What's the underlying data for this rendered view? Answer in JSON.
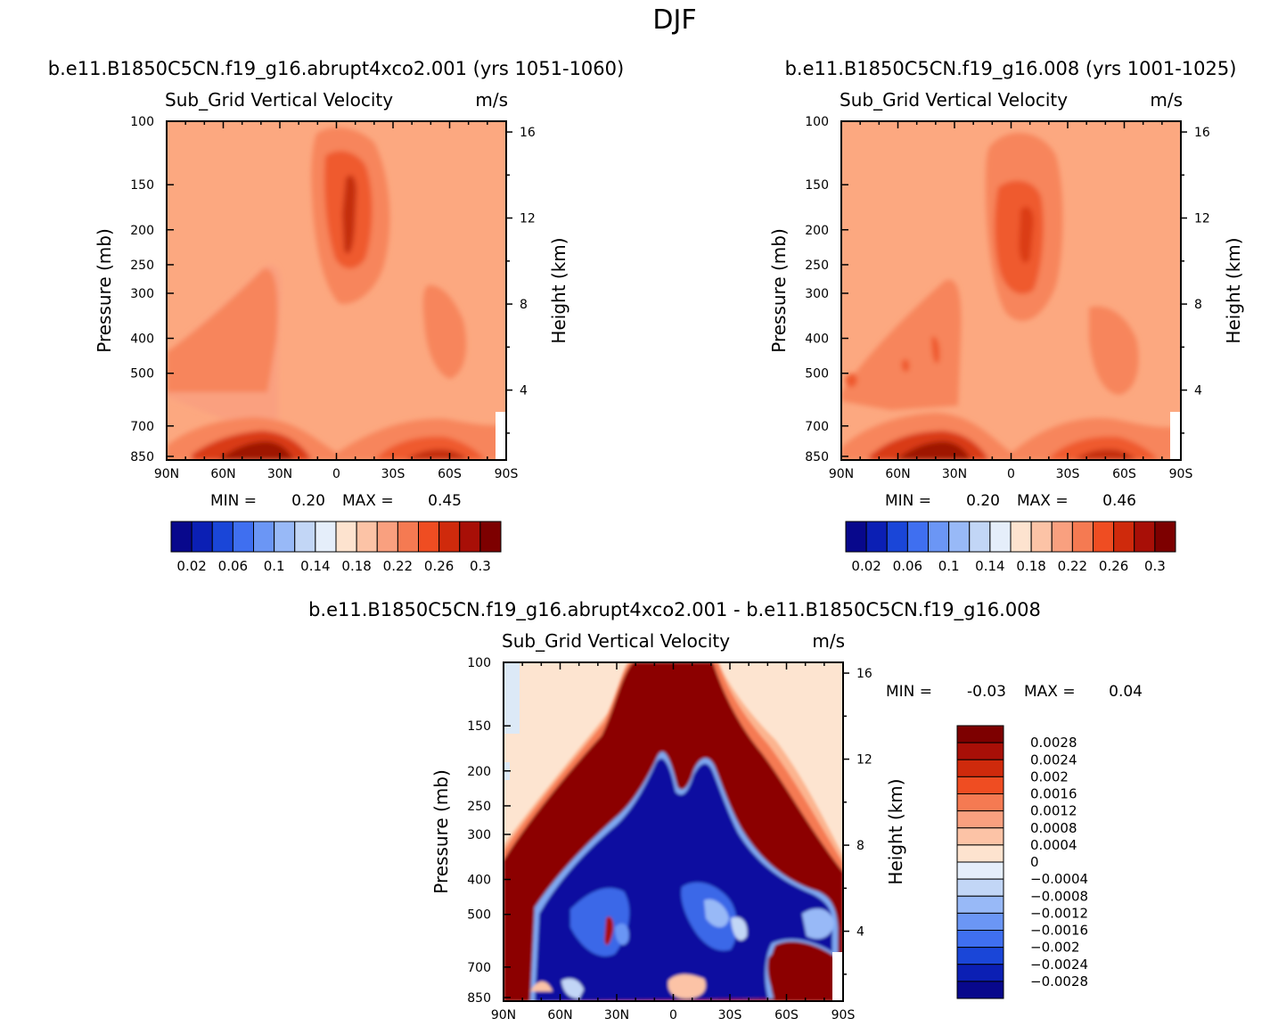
{
  "page": {
    "season": "DJF",
    "left_run_title": "b.e11.B1850C5CN.f19_g16.abrupt4xco2.001 (yrs 1051-1060)",
    "right_run_title": "b.e11.B1850C5CN.f19_g16.008 (yrs 1001-1025)",
    "diff_title": "b.e11.B1850C5CN.f19_g16.abrupt4xco2.001 - b.e11.B1850C5CN.f19_g16.008"
  },
  "chart_data": [
    {
      "id": "panel_left",
      "type": "heatmap",
      "title": "Sub_Grid Vertical Velocity",
      "units": "m/s",
      "xlabel": "",
      "ylabel": "Pressure (mb)",
      "y2label": "Height (km)",
      "x_ticks": [
        "90N",
        "60N",
        "30N",
        "0",
        "30S",
        "60S",
        "90S"
      ],
      "y_ticks": [
        100,
        150,
        200,
        250,
        300,
        400,
        500,
        700,
        850
      ],
      "y2_ticks": [
        4,
        8,
        12,
        16
      ],
      "min_label": "MIN =",
      "min_value": "0.20",
      "max_label": "MAX =",
      "max_value": "0.45",
      "colorbar_levels": [
        0.02,
        0.04,
        0.06,
        0.08,
        0.1,
        0.12,
        0.14,
        0.16,
        0.18,
        0.2,
        0.22,
        0.24,
        0.26,
        0.28,
        0.3
      ],
      "colorbar_labels": [
        "0.02",
        "0.06",
        "0.1",
        "0.14",
        "0.18",
        "0.22",
        "0.26",
        "0.3"
      ]
    },
    {
      "id": "panel_right",
      "type": "heatmap",
      "title": "Sub_Grid Vertical Velocity",
      "units": "m/s",
      "xlabel": "",
      "ylabel": "Pressure (mb)",
      "y2label": "Height (km)",
      "x_ticks": [
        "90N",
        "60N",
        "30N",
        "0",
        "30S",
        "60S",
        "90S"
      ],
      "y_ticks": [
        100,
        150,
        200,
        250,
        300,
        400,
        500,
        700,
        850
      ],
      "y2_ticks": [
        4,
        8,
        12,
        16
      ],
      "min_label": "MIN =",
      "min_value": "0.20",
      "max_label": "MAX =",
      "max_value": "0.46",
      "colorbar_levels": [
        0.02,
        0.04,
        0.06,
        0.08,
        0.1,
        0.12,
        0.14,
        0.16,
        0.18,
        0.2,
        0.22,
        0.24,
        0.26,
        0.28,
        0.3
      ],
      "colorbar_labels": [
        "0.02",
        "0.06",
        "0.1",
        "0.14",
        "0.18",
        "0.22",
        "0.26",
        "0.3"
      ]
    },
    {
      "id": "panel_diff",
      "type": "heatmap",
      "title": "Sub_Grid Vertical Velocity",
      "units": "m/s",
      "xlabel": "",
      "ylabel": "Pressure (mb)",
      "y2label": "Height (km)",
      "x_ticks": [
        "90N",
        "60N",
        "30N",
        "0",
        "30S",
        "60S",
        "90S"
      ],
      "y_ticks": [
        100,
        150,
        200,
        250,
        300,
        400,
        500,
        700,
        850
      ],
      "y2_ticks": [
        4,
        8,
        12,
        16
      ],
      "min_label": "MIN =",
      "min_value": "-0.03",
      "max_label": "MAX =",
      "max_value": "0.04",
      "colorbar_labels": [
        "0.0028",
        "0.0024",
        "0.002",
        "0.0016",
        "0.0012",
        "0.0008",
        "0.0004",
        "0",
        "-0.0004",
        "-0.0008",
        "-0.0012",
        "-0.0016",
        "-0.002",
        "-0.0024",
        "-0.0028"
      ]
    }
  ],
  "colors": {
    "seq": [
      "#08088c",
      "#0b1fb4",
      "#1a46d8",
      "#3f6ff0",
      "#6b96f5",
      "#98b9f7",
      "#c2d6f6",
      "#e5eefa",
      "#fde3cf",
      "#fcc3a6",
      "#f9a07f",
      "#f57a52",
      "#ef4d22",
      "#cf2a0c",
      "#a80f07",
      "#7d0000"
    ],
    "bg_left_panel": "#fca880",
    "bg_diff_panel": "#fde4d0"
  }
}
